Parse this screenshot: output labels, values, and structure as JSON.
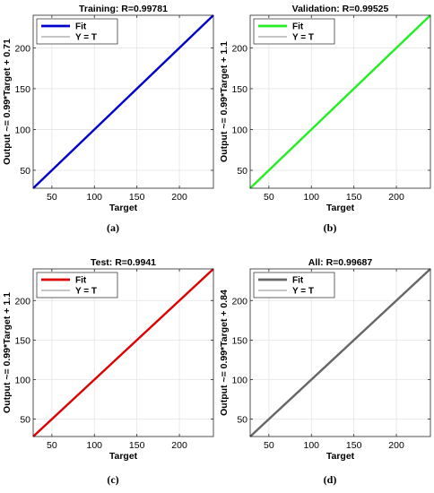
{
  "chart_data": [
    {
      "panel": "a",
      "caption": "(a)",
      "type": "line",
      "title": "Training: R=0.99781",
      "xlabel": "Target",
      "ylabel": "Output ~= 0.99*Target + 0.71",
      "xlim": [
        28,
        240
      ],
      "ylim": [
        28,
        240
      ],
      "xticks": [
        50,
        100,
        150,
        200
      ],
      "yticks": [
        50,
        100,
        150,
        200
      ],
      "grid": true,
      "legend_position": "top-left",
      "series": [
        {
          "name": "Fit",
          "color": "#0000cc",
          "x": [
            28,
            240
          ],
          "y": [
            28,
            240
          ]
        },
        {
          "name": "Y = T",
          "color": "#8c8c8c",
          "x": [
            28,
            240
          ],
          "y": [
            28,
            240
          ]
        }
      ]
    },
    {
      "panel": "b",
      "caption": "(b)",
      "type": "line",
      "title": "Validation: R=0.99525",
      "xlabel": "Target",
      "ylabel": "Output ~= 0.99*Target + 1.1",
      "xlim": [
        28,
        240
      ],
      "ylim": [
        28,
        240
      ],
      "xticks": [
        50,
        100,
        150,
        200
      ],
      "yticks": [
        50,
        100,
        150,
        200
      ],
      "grid": true,
      "legend_position": "top-left",
      "series": [
        {
          "name": "Fit",
          "color": "#22ee22",
          "x": [
            28,
            240
          ],
          "y": [
            28,
            240
          ]
        },
        {
          "name": "Y = T",
          "color": "#8c8c8c",
          "x": [
            28,
            240
          ],
          "y": [
            28,
            240
          ]
        }
      ]
    },
    {
      "panel": "c",
      "caption": "(c)",
      "type": "line",
      "title": "Test: R=0.9941",
      "xlabel": "Target",
      "ylabel": "Output ~= 0.99*Target + 1.1",
      "xlim": [
        28,
        240
      ],
      "ylim": [
        28,
        240
      ],
      "xticks": [
        50,
        100,
        150,
        200
      ],
      "yticks": [
        50,
        100,
        150,
        200
      ],
      "grid": true,
      "legend_position": "top-left",
      "series": [
        {
          "name": "Fit",
          "color": "#dd0000",
          "x": [
            28,
            240
          ],
          "y": [
            28,
            240
          ]
        },
        {
          "name": "Y = T",
          "color": "#8c8c8c",
          "x": [
            28,
            240
          ],
          "y": [
            28,
            240
          ]
        }
      ]
    },
    {
      "panel": "d",
      "caption": "(d)",
      "type": "line",
      "title": "All: R=0.99687",
      "xlabel": "Target",
      "ylabel": "Output ~= 0.99*Target + 0.84",
      "xlim": [
        28,
        240
      ],
      "ylim": [
        28,
        240
      ],
      "xticks": [
        50,
        100,
        150,
        200
      ],
      "yticks": [
        50,
        100,
        150,
        200
      ],
      "grid": true,
      "legend_position": "top-left",
      "series": [
        {
          "name": "Fit",
          "color": "#666666",
          "x": [
            28,
            240
          ],
          "y": [
            28,
            240
          ]
        },
        {
          "name": "Y = T",
          "color": "#8c8c8c",
          "x": [
            28,
            240
          ],
          "y": [
            28,
            240
          ]
        }
      ]
    }
  ]
}
